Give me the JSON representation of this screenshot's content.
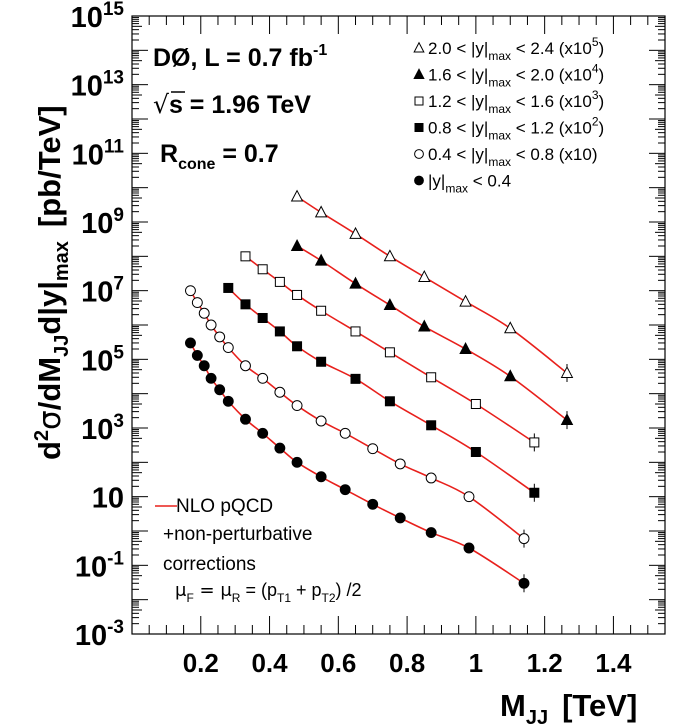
{
  "chart_data": {
    "type": "scatter",
    "xlabel": {
      "main": "M",
      "sub": "JJ",
      "unit": "[TeV]"
    },
    "ylabel": {
      "pre": "d",
      "sup": "2",
      "sigma": "σ",
      "mid": "/dM",
      "sub1": "JJ",
      "mid2": "d|y|",
      "sub2": "max",
      "unit": "[pb/TeV]"
    },
    "xlim": [
      0,
      1.55
    ],
    "ylim": [
      0.001,
      1000000000000000.0
    ],
    "yscale": "log",
    "xticks": [
      {
        "v": 0.2,
        "label": "0.2"
      },
      {
        "v": 0.4,
        "label": "0.4"
      },
      {
        "v": 0.6,
        "label": "0.6"
      },
      {
        "v": 0.8,
        "label": "0.8"
      },
      {
        "v": 1.0,
        "label": "1"
      },
      {
        "v": 1.2,
        "label": "1.2"
      },
      {
        "v": 1.4,
        "label": "1.4"
      }
    ],
    "yticks": [
      {
        "v": 0.001,
        "base": "10",
        "exp": "-3"
      },
      {
        "v": 0.1,
        "base": "10",
        "exp": "-1"
      },
      {
        "v": 10,
        "base": "10",
        "exp": ""
      },
      {
        "v": 1000.0,
        "base": "10",
        "exp": "3"
      },
      {
        "v": 100000.0,
        "base": "10",
        "exp": "5"
      },
      {
        "v": 10000000.0,
        "base": "10",
        "exp": "7"
      },
      {
        "v": 1000000000.0,
        "base": "10",
        "exp": "9"
      },
      {
        "v": 100000000000.0,
        "base": "10",
        "exp": "11"
      },
      {
        "v": 10000000000000.0,
        "base": "10",
        "exp": "13"
      },
      {
        "v": 1000000000000000.0,
        "base": "10",
        "exp": "15"
      }
    ],
    "annotations": {
      "experiment": "DØ, L = 0.7 fb",
      "experiment_sup": "-1",
      "sqrt_symbol": "√",
      "energy_s": "s",
      "energy_rest": " = 1.96 TeV",
      "cone_main": "R",
      "cone_sub": "cone",
      "cone_rest": " = 0.7"
    },
    "theory_legend": {
      "line1": "NLO pQCD",
      "line2": "+non-perturbative",
      "line3": "corrections",
      "scale": {
        "a": "μ",
        "as": "F",
        "b": " = μ",
        "bs": "R",
        "c": " = (p",
        "cs": "T1",
        "d": " + p",
        "ds": "T2",
        "e": ") /2"
      }
    },
    "line_color": "#e8201c",
    "series": [
      {
        "marker": "open-triangle",
        "legend": {
          "pre": "2.0 < |y|",
          "sub": "max",
          "mid": " < 2.4 (x10",
          "sup": "5",
          "post": ")"
        },
        "x": [
          0.48,
          0.55,
          0.65,
          0.75,
          0.85,
          0.97,
          1.1,
          1.265
        ],
        "y": [
          5500000000.0,
          1900000000.0,
          450000000.0,
          100000000.0,
          25000000.0,
          4800000.0,
          800000.0,
          40000.0
        ]
      },
      {
        "marker": "filled-triangle",
        "legend": {
          "pre": "1.6 < |y|",
          "sub": "max",
          "mid": " < 2.0 (x10",
          "sup": "4",
          "post": ")"
        },
        "x": [
          0.48,
          0.55,
          0.65,
          0.75,
          0.85,
          0.97,
          1.1,
          1.265
        ],
        "y": [
          200000000.0,
          75000000.0,
          16000000.0,
          3800000.0,
          900000.0,
          200000.0,
          32000.0,
          1700.0
        ]
      },
      {
        "marker": "open-square",
        "legend": {
          "pre": "1.2 < |y|",
          "sub": "max",
          "mid": " < 1.6 (x10",
          "sup": "3",
          "post": ")"
        },
        "x": [
          0.33,
          0.38,
          0.43,
          0.48,
          0.55,
          0.65,
          0.75,
          0.87,
          1.0,
          1.17
        ],
        "y": [
          100000000.0,
          42000000.0,
          18000000.0,
          7500000.0,
          2600000.0,
          650000.0,
          160000.0,
          30000.0,
          5000.0,
          380.0
        ]
      },
      {
        "marker": "filled-square",
        "legend": {
          "pre": "0.8 < |y|",
          "sub": "max",
          "mid": " < 1.2 (x10",
          "sup": "2",
          "post": ")"
        },
        "x": [
          0.28,
          0.33,
          0.38,
          0.43,
          0.48,
          0.55,
          0.65,
          0.75,
          0.87,
          1.0,
          1.17
        ],
        "y": [
          12000000.0,
          4000000.0,
          1600000.0,
          650000.0,
          240000.0,
          85000.0,
          27000.0,
          6000.0,
          1200.0,
          200.0,
          13
        ]
      },
      {
        "marker": "open-circle",
        "legend": {
          "pre": "0.4 < |y|",
          "sub": "max",
          "mid": " < 0.8 (x10)",
          "sup": "",
          "post": ""
        },
        "x": [
          0.17,
          0.19,
          0.21,
          0.23,
          0.255,
          0.28,
          0.33,
          0.38,
          0.43,
          0.48,
          0.55,
          0.62,
          0.7,
          0.78,
          0.87,
          0.98,
          1.14
        ],
        "y": [
          10000000.0,
          4500000.0,
          2200000.0,
          1000000.0,
          450000.0,
          220000.0,
          65000.0,
          28000.0,
          11000.0,
          4500.0,
          1600.0,
          700.0,
          250.0,
          90,
          35,
          10,
          0.6
        ]
      },
      {
        "marker": "filled-circle",
        "legend": {
          "pre": "|y|",
          "sub": "max",
          "mid": " < 0.4",
          "sup": "",
          "post": ""
        },
        "x": [
          0.17,
          0.19,
          0.21,
          0.23,
          0.255,
          0.28,
          0.33,
          0.38,
          0.43,
          0.48,
          0.55,
          0.62,
          0.7,
          0.78,
          0.87,
          0.98,
          1.14
        ],
        "y": [
          300000.0,
          130000.0,
          65000.0,
          28000.0,
          13000.0,
          6000.0,
          1800.0,
          700.0,
          260.0,
          100.0,
          38,
          16,
          6.0,
          2.4,
          0.9,
          0.32,
          0.03
        ]
      }
    ]
  }
}
